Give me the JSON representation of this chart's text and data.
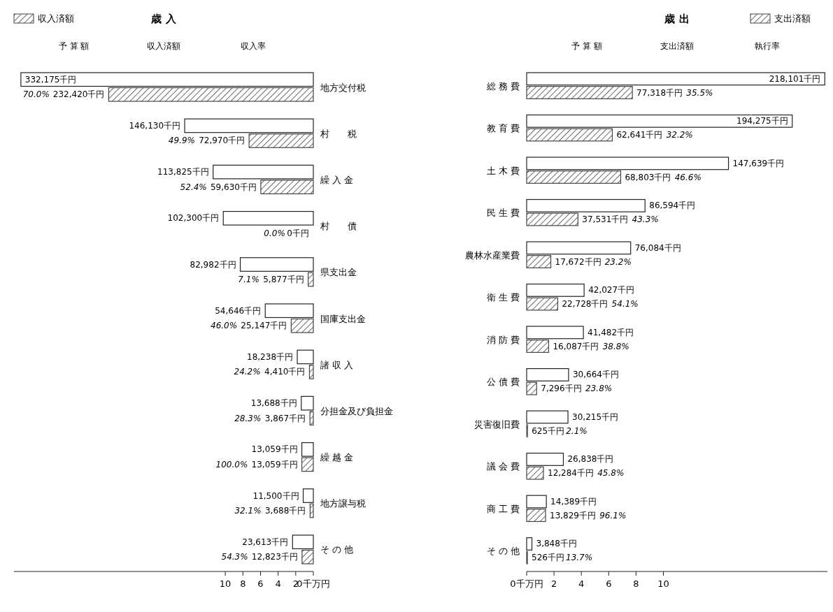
{
  "chart_data": [
    {
      "type": "bar",
      "orientation": "horizontal",
      "title": "歳 入",
      "legend": "top left",
      "categories": [
        "地方交付税",
        "村　　税",
        "繰 入 金",
        "村　　債",
        "県支出金",
        "国庫支出金",
        "諸 収 入",
        "分担金及び負担金",
        "繰 越 金",
        "地方譲与税",
        "そ の 他"
      ],
      "xlim": [
        34,
        0
      ],
      "xticks": [
        10,
        8,
        6,
        4,
        2,
        {
          "value": 0,
          "label": "0千万円"
        }
      ],
      "series": [
        {
          "color": "#ffffff",
          "values": [
            33.2175,
            14.613,
            11.3825,
            10.23,
            8.2982,
            5.4646,
            1.8238,
            1.3688,
            1.3059,
            1.15,
            2.3613
          ]
        },
        {
          "name": "収入済額",
          "color": "#444444",
          "values": [
            23.242,
            7.297,
            5.963,
            0,
            0.5877,
            2.5147,
            0.441,
            0.3867,
            1.3059,
            0.3688,
            1.2823
          ]
        }
      ],
      "annotations": [
        "予 算 額",
        "収入済額",
        "収入率",
        "332,175千円",
        "232,420千円",
        "70.0%",
        "146,130千円",
        "72,970千円",
        "49.9%",
        "113,825千円",
        "59,630千円",
        "52.4%",
        "102,300千円",
        "0千円",
        "0.0%",
        "82,982千円",
        "5,877千円",
        "7.1%",
        "54,646千円",
        "25,147千円",
        "46.0%",
        "18,238千円",
        "4,410千円",
        "24.2%",
        "13,688千円",
        "3,867千円",
        "28.3%",
        "13,059千円",
        "13,059千円",
        "100.0%",
        "11,500千円",
        "3,688千円",
        "32.1%",
        "23,613千円",
        "12,823千円",
        "54.3%"
      ]
    },
    {
      "type": "bar",
      "orientation": "horizontal",
      "title": "歳 出",
      "legend": "top right",
      "categories": [
        "総 務 費",
        "教 育 費",
        "土 木 費",
        "民 生 費",
        "農林水産業費",
        "衛 生 費",
        "消 防 費",
        "公 債 費",
        "災害復旧費",
        "議 会 費",
        "商 工 費",
        "そ の 他"
      ],
      "xlim": [
        0,
        22
      ],
      "xticks": [
        {
          "value": 0,
          "label": "0千万円"
        },
        2,
        4,
        6,
        8,
        10
      ],
      "series": [
        {
          "color": "#ffffff",
          "values": [
            21.8101,
            19.4275,
            14.7639,
            8.6594,
            7.6084,
            4.2027,
            4.1482,
            3.0664,
            3.0215,
            2.6838,
            1.4389,
            0.3848
          ]
        },
        {
          "name": "支出済額",
          "color": "#444444",
          "values": [
            7.7318,
            6.2641,
            6.8803,
            3.7531,
            1.7672,
            2.2728,
            1.6087,
            0.7296,
            0.0625,
            1.2284,
            1.3829,
            0.0526
          ]
        }
      ],
      "annotations": [
        "予 算 額",
        "支出済額",
        "執行率",
        "218,101千円",
        "77,318千円",
        "35.5%",
        "194,275千円",
        "62,641千円",
        "32.2%",
        "147,639千円",
        "68,803千円",
        "46.6%",
        "86,594千円",
        "37,531千円",
        "43.3%",
        "76,084千円",
        "17,672千円",
        "23.2%",
        "42,027千円",
        "22,728千円",
        "54.1%",
        "41,482千円",
        "16,087千円",
        "38.8%",
        "30,664千円",
        "7,296千円",
        "23.8%",
        "30,215千円",
        "625千円",
        "2.1%",
        "26,838千円",
        "12,284千円",
        "45.8%",
        "14,389千円",
        "13,829千円",
        "96.1%",
        "3,848千円",
        "526千円",
        "13.7%"
      ]
    }
  ]
}
